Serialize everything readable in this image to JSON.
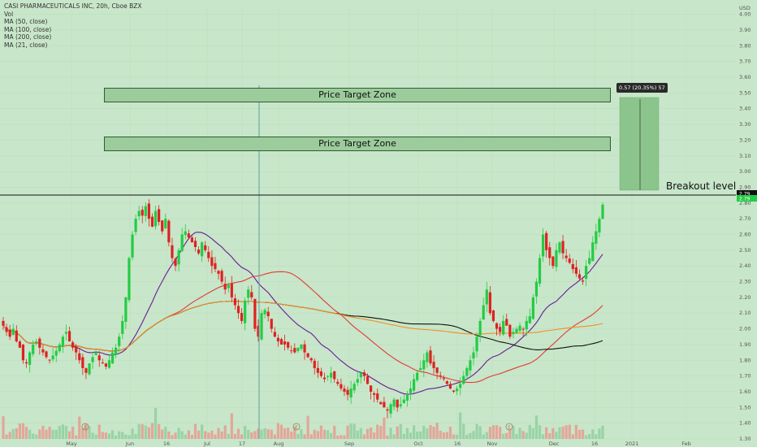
{
  "legend": {
    "title": "CASI PHARMACEUTICALS INC, 20h, Cboe BZX",
    "lines": [
      "Vol",
      "MA (50, close)",
      "MA (100, close)",
      "MA (200, close)",
      "MA (21, close)"
    ]
  },
  "currency": "USD",
  "annotations": {
    "zone_upper": "Price Target Zone",
    "zone_lower": "Price Target Zone",
    "breakout": "Breakout level",
    "measure": "0.57 (20.35%) 57",
    "last_price_top": "2.79",
    "last_price_bottom": "2.79"
  },
  "colors": {
    "background": "#c8e6c9",
    "up": "#22cc44",
    "down": "#dd2222",
    "ma21": "#6a1b9a",
    "ma50": "#e53935",
    "ma100": "#111111",
    "ma200": "#f0902a",
    "zone_fill": "#9ccc9c",
    "measure_fill": "#8bc58b"
  },
  "chart_data": {
    "type": "candlestick",
    "title": "CASI PHARMACEUTICALS INC, 20h, Cboe BZX",
    "y_axis": {
      "unit": "USD",
      "ticks": [
        "1.30",
        "1.40",
        "1.50",
        "1.60",
        "1.70",
        "1.80",
        "1.90",
        "2.00",
        "2.10",
        "2.20",
        "2.30",
        "2.40",
        "2.50",
        "2.60",
        "2.70",
        "2.80",
        "2.90",
        "3.00",
        "3.10",
        "3.20",
        "3.30",
        "3.40",
        "3.50",
        "3.60",
        "3.70",
        "3.80",
        "3.90",
        "4.00"
      ],
      "range": [
        1.3,
        4.05
      ]
    },
    "x_axis": {
      "ticks": [
        "May",
        "Jun",
        "16",
        "Jul",
        "17",
        "Aug",
        "Sep",
        "Oct",
        "16",
        "Nov",
        "Dec",
        "16",
        "2021",
        "Feb"
      ]
    },
    "levels": {
      "breakout": 2.79,
      "zone_lower": [
        3.04,
        3.11
      ],
      "zone_upper": [
        3.37,
        3.44
      ],
      "measure": [
        2.81,
        3.38
      ]
    },
    "ohlc_close": [
      2.02,
      1.98,
      1.95,
      2.0,
      1.92,
      1.88,
      1.8,
      1.78,
      1.85,
      1.9,
      1.92,
      1.88,
      1.85,
      1.82,
      1.8,
      1.83,
      1.86,
      1.9,
      1.95,
      1.98,
      1.92,
      1.88,
      1.85,
      1.8,
      1.75,
      1.72,
      1.78,
      1.82,
      1.85,
      1.8,
      1.78,
      1.76,
      1.8,
      1.85,
      1.88,
      1.95,
      2.05,
      2.2,
      2.45,
      2.6,
      2.7,
      2.75,
      2.72,
      2.78,
      2.7,
      2.65,
      2.75,
      2.68,
      2.62,
      2.7,
      2.55,
      2.45,
      2.4,
      2.5,
      2.6,
      2.62,
      2.58,
      2.55,
      2.52,
      2.48,
      2.55,
      2.5,
      2.45,
      2.4,
      2.38,
      2.35,
      2.3,
      2.25,
      2.28,
      2.2,
      2.15,
      2.1,
      2.05,
      2.18,
      2.25,
      2.2,
      2.0,
      1.95,
      2.1,
      2.12,
      2.08,
      2.0,
      1.95,
      1.92,
      1.9,
      1.9,
      1.88,
      1.86,
      1.85,
      1.88,
      1.9,
      1.85,
      1.82,
      1.8,
      1.75,
      1.72,
      1.7,
      1.68,
      1.7,
      1.72,
      1.68,
      1.65,
      1.62,
      1.6,
      1.58,
      1.62,
      1.65,
      1.68,
      1.72,
      1.7,
      1.65,
      1.6,
      1.58,
      1.55,
      1.52,
      1.5,
      1.48,
      1.52,
      1.55,
      1.5,
      1.52,
      1.55,
      1.58,
      1.62,
      1.68,
      1.72,
      1.75,
      1.8,
      1.85,
      1.78,
      1.75,
      1.72,
      1.7,
      1.68,
      1.65,
      1.62,
      1.6,
      1.62,
      1.65,
      1.7,
      1.75,
      1.8,
      1.85,
      1.95,
      2.05,
      2.15,
      2.25,
      2.1,
      2.05,
      2.0,
      1.98,
      2.05,
      2.02,
      1.95,
      1.98,
      2.0,
      2.02,
      2.0,
      2.05,
      2.08,
      2.2,
      2.3,
      2.45,
      2.6,
      2.5,
      2.45,
      2.4,
      2.5,
      2.55,
      2.48,
      2.45,
      2.42,
      2.38,
      2.35,
      2.32,
      2.3,
      2.4,
      2.45,
      2.55,
      2.62,
      2.7,
      2.79
    ]
  }
}
